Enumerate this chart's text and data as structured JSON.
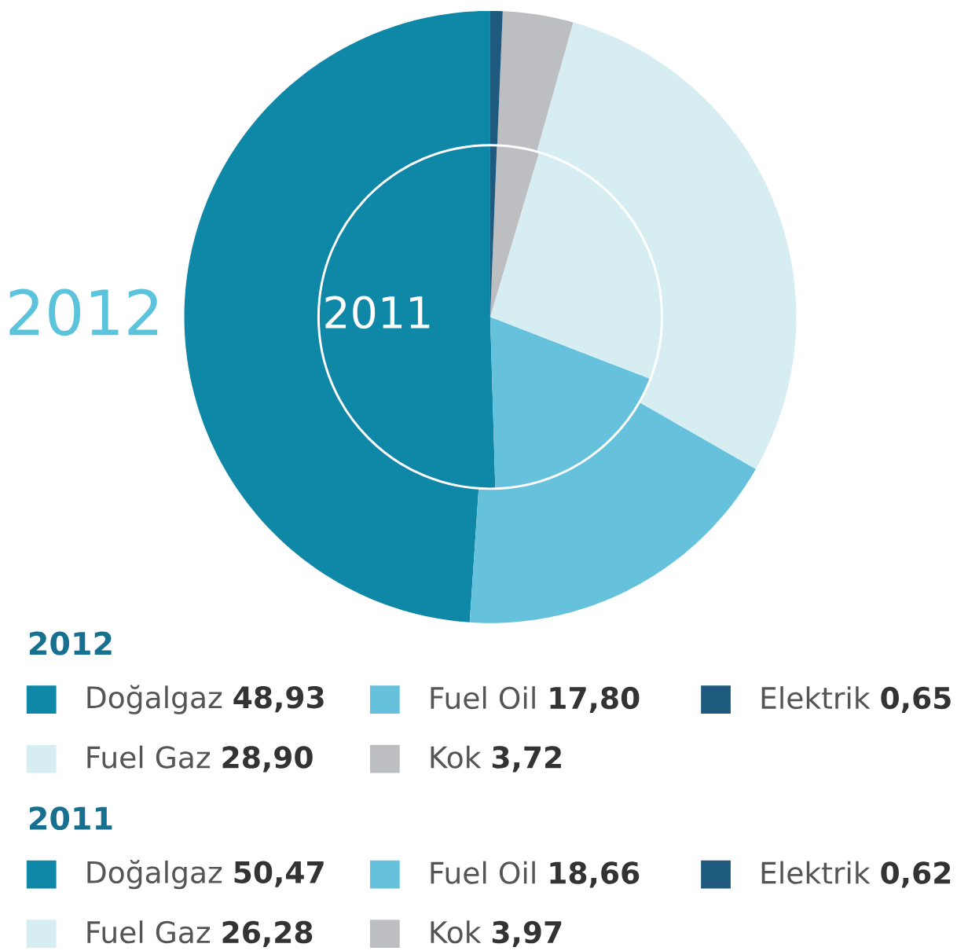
{
  "chart_data": [
    {
      "type": "donut",
      "title": "2012",
      "categories": [
        "Doğalgaz",
        "Fuel Oil",
        "Elektrik",
        "Fuel Gaz",
        "Kok"
      ],
      "values": [
        48.93,
        17.8,
        0.65,
        28.9,
        3.72
      ],
      "value_labels": [
        "48,93",
        "17,80",
        "0,65",
        "28,90",
        "3,72"
      ],
      "colors": [
        "#0f87a6",
        "#66c2dc",
        "#1d5a7e",
        "#d6eef1",
        "#bdbec2"
      ],
      "legend": "bottom"
    },
    {
      "type": "pie",
      "title": "2011",
      "categories": [
        "Doğalgaz",
        "Fuel Oil",
        "Elektrik",
        "Fuel Gaz",
        "Kok"
      ],
      "values": [
        50.47,
        18.66,
        0.62,
        26.28,
        3.97
      ],
      "value_labels": [
        "50,47",
        "18,66",
        "0,62",
        "26,28",
        "3,97"
      ],
      "colors": [
        "#0f87a6",
        "#66c2dc",
        "#1d5a7e",
        "#d6eef1",
        "#bdbec2"
      ],
      "legend": "bottom"
    }
  ]
}
